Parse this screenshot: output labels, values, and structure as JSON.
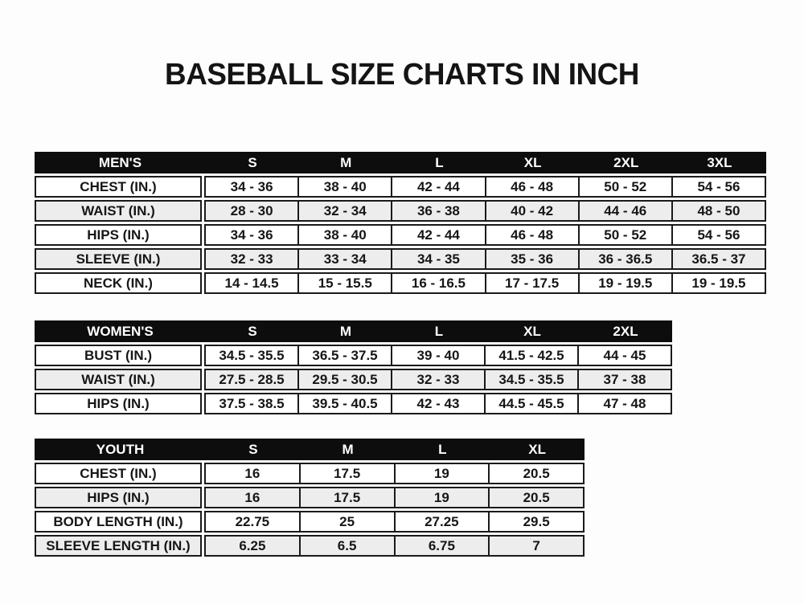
{
  "title": "BASEBALL SIZE CHARTS IN INCH",
  "colors": {
    "header_bg": "#0d0d0d",
    "header_text": "#ffffff",
    "alt_row_bg": "#ededed",
    "border": "#1a1a1a",
    "page_bg": "#fdfdfd"
  },
  "chart_data": [
    {
      "type": "table",
      "name": "MEN'S",
      "columns": [
        "S",
        "M",
        "L",
        "XL",
        "2XL",
        "3XL"
      ],
      "rows": [
        {
          "label": "CHEST (IN.)",
          "values": [
            "34 - 36",
            "38 - 40",
            "42 - 44",
            "46 - 48",
            "50 - 52",
            "54 - 56"
          ]
        },
        {
          "label": "WAIST (IN.)",
          "values": [
            "28 - 30",
            "32 - 34",
            "36 - 38",
            "40 - 42",
            "44 - 46",
            "48 - 50"
          ]
        },
        {
          "label": "HIPS (IN.)",
          "values": [
            "34 - 36",
            "38 - 40",
            "42 - 44",
            "46 - 48",
            "50 - 52",
            "54 - 56"
          ]
        },
        {
          "label": "SLEEVE (IN.)",
          "values": [
            "32 - 33",
            "33 - 34",
            "34 - 35",
            "35 - 36",
            "36 - 36.5",
            "36.5 - 37"
          ]
        },
        {
          "label": "NECK (IN.)",
          "values": [
            "14 - 14.5",
            "15 - 15.5",
            "16 - 16.5",
            "17 - 17.5",
            "19 - 19.5",
            "19 - 19.5"
          ]
        }
      ]
    },
    {
      "type": "table",
      "name": "WOMEN'S",
      "columns": [
        "S",
        "M",
        "L",
        "XL",
        "2XL"
      ],
      "rows": [
        {
          "label": "BUST (IN.)",
          "values": [
            "34.5 - 35.5",
            "36.5 - 37.5",
            "39 - 40",
            "41.5 - 42.5",
            "44 - 45"
          ]
        },
        {
          "label": "WAIST (IN.)",
          "values": [
            "27.5 - 28.5",
            "29.5 - 30.5",
            "32 - 33",
            "34.5 - 35.5",
            "37 - 38"
          ]
        },
        {
          "label": "HIPS (IN.)",
          "values": [
            "37.5 - 38.5",
            "39.5 - 40.5",
            "42 - 43",
            "44.5 - 45.5",
            "47 - 48"
          ]
        }
      ]
    },
    {
      "type": "table",
      "name": "YOUTH",
      "columns": [
        "S",
        "M",
        "L",
        "XL"
      ],
      "rows": [
        {
          "label": "CHEST (IN.)",
          "values": [
            "16",
            "17.5",
            "19",
            "20.5"
          ]
        },
        {
          "label": "HIPS (IN.)",
          "values": [
            "16",
            "17.5",
            "19",
            "20.5"
          ]
        },
        {
          "label": "BODY LENGTH (IN.)",
          "values": [
            "22.75",
            "25",
            "27.25",
            "29.5"
          ]
        },
        {
          "label": "SLEEVE LENGTH (IN.)",
          "values": [
            "6.25",
            "6.5",
            "6.75",
            "7"
          ]
        }
      ]
    }
  ]
}
